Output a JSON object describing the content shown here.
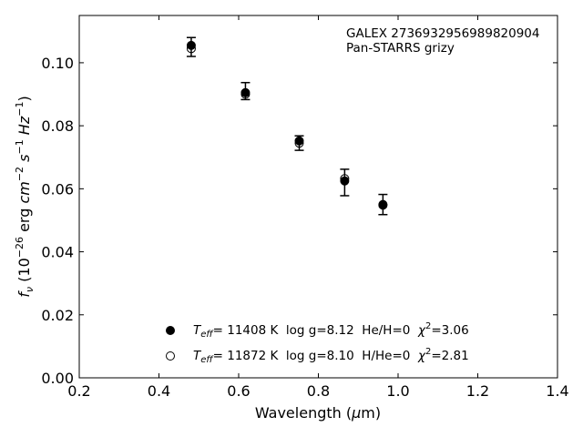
{
  "chart_data": {
    "type": "scatter",
    "xlabel": "Wavelength (μm)",
    "ylabel": "f_ν (10^-26 erg cm^-2 s^-1 Hz^-1)",
    "xlim": [
      0.2,
      1.4
    ],
    "ylim": [
      0.0,
      0.115
    ],
    "x_ticks": [
      "0.2",
      "0.4",
      "0.6",
      "0.8",
      "1.0",
      "1.2",
      "1.4"
    ],
    "y_ticks": [
      "0.00",
      "0.02",
      "0.04",
      "0.06",
      "0.08",
      "0.10"
    ],
    "grid": false,
    "annotation_lines": [
      "GALEX 2736932956989820904",
      "Pan-STARRS grizy"
    ],
    "observed": {
      "bands": [
        "g",
        "r",
        "i",
        "z",
        "y"
      ],
      "x": [
        0.481,
        0.617,
        0.752,
        0.866,
        0.962
      ],
      "y": [
        0.105,
        0.091,
        0.0745,
        0.062,
        0.055
      ],
      "yerr": [
        0.003,
        0.0027,
        0.0023,
        0.0042,
        0.0032
      ]
    },
    "series": [
      {
        "name": "T_eff= 11408 K  log g=8.12  He/H=0  χ²=3.06",
        "marker": "filled-circle",
        "x": [
          0.481,
          0.617,
          0.752,
          0.866,
          0.962
        ],
        "y": [
          0.1055,
          0.0905,
          0.0752,
          0.0625,
          0.055
        ]
      },
      {
        "name": "T_eff= 11872 K  log g=8.10  H/He=0  χ²=2.81",
        "marker": "open-circle",
        "x": [
          0.481,
          0.617,
          0.752,
          0.866,
          0.962
        ],
        "y": [
          0.1045,
          0.09,
          0.0745,
          0.0632,
          0.0548
        ]
      }
    ],
    "legend": {
      "placement": "bottom-center",
      "entries": [
        {
          "teff": "11408 K",
          "rest": "  log g=8.12  He/H=0  ",
          "chi": "=3.06"
        },
        {
          "teff": "11872 K",
          "rest": "  log g=8.10  H/He=0  ",
          "chi": "=2.81"
        }
      ]
    }
  }
}
